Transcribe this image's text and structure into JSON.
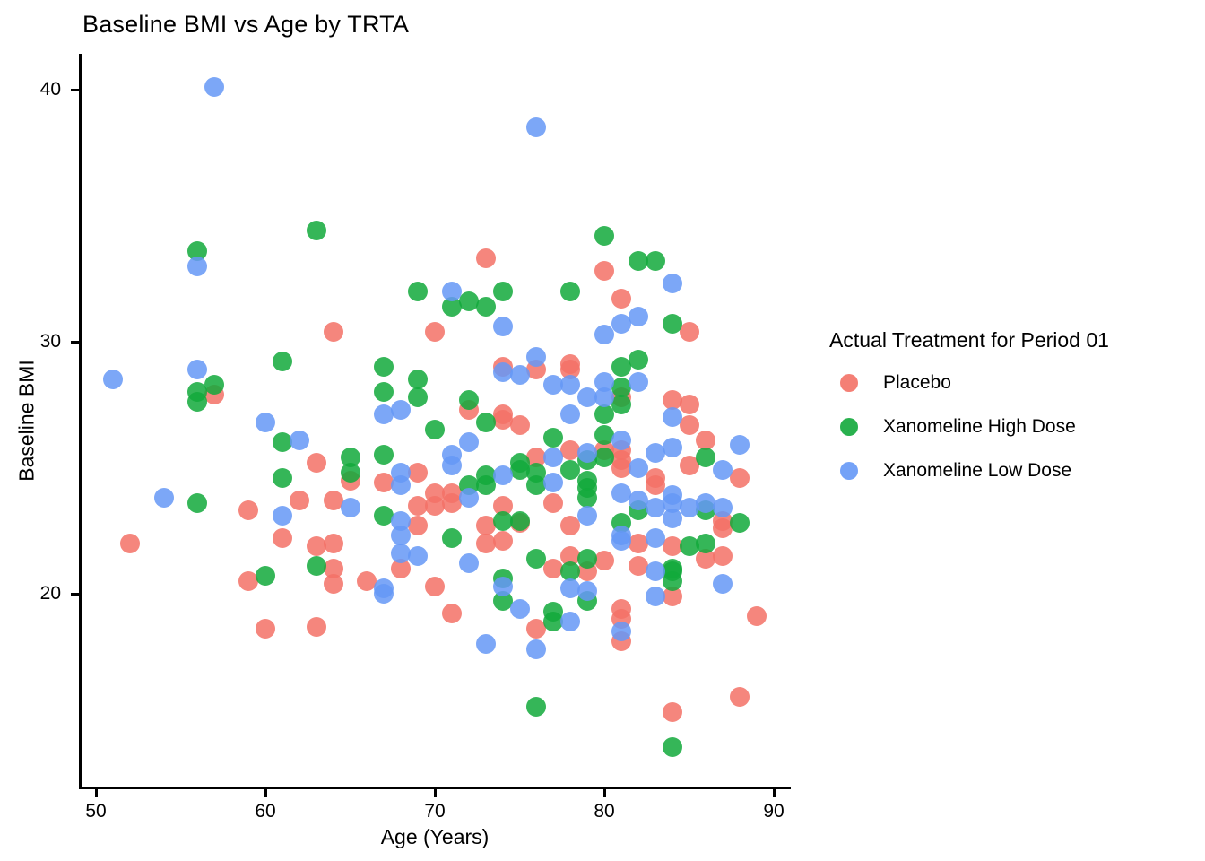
{
  "title": "Baseline BMI vs Age by TRTA",
  "chart_data": {
    "type": "scatter",
    "title": "Baseline BMI vs Age by TRTA",
    "xlabel": "Age (Years)",
    "ylabel": "Baseline BMI",
    "xlim": [
      49,
      91
    ],
    "ylim": [
      12.5,
      41.4
    ],
    "x_ticks": [
      50,
      60,
      70,
      80,
      90
    ],
    "y_ticks": [
      20,
      30,
      40
    ],
    "grid": false,
    "legend_title": "Actual Treatment for Period 01",
    "legend_position": "right",
    "series": [
      {
        "name": "Placebo",
        "color": "#F37166",
        "points": [
          [
            52,
            22.0
          ],
          [
            57,
            27.9
          ],
          [
            59,
            23.3
          ],
          [
            59,
            20.5
          ],
          [
            60,
            18.6
          ],
          [
            61,
            22.2
          ],
          [
            62,
            23.7
          ],
          [
            63,
            25.2
          ],
          [
            63,
            21.9
          ],
          [
            63,
            18.7
          ],
          [
            64,
            30.4
          ],
          [
            64,
            23.7
          ],
          [
            64,
            22.0
          ],
          [
            64,
            21.0
          ],
          [
            64,
            20.4
          ],
          [
            65,
            24.5
          ],
          [
            66,
            20.5
          ],
          [
            67,
            24.4
          ],
          [
            68,
            21.0
          ],
          [
            69,
            24.8
          ],
          [
            69,
            23.5
          ],
          [
            69,
            22.7
          ],
          [
            70,
            30.4
          ],
          [
            70,
            24.0
          ],
          [
            70,
            23.5
          ],
          [
            70,
            20.3
          ],
          [
            71,
            24.0
          ],
          [
            71,
            23.6
          ],
          [
            71,
            19.2
          ],
          [
            72,
            27.3
          ],
          [
            73,
            33.3
          ],
          [
            73,
            22.7
          ],
          [
            73,
            22.0
          ],
          [
            74,
            29.0
          ],
          [
            74,
            27.1
          ],
          [
            74,
            26.9
          ],
          [
            74,
            23.5
          ],
          [
            74,
            22.1
          ],
          [
            75,
            26.7
          ],
          [
            75,
            22.8
          ],
          [
            76,
            28.9
          ],
          [
            76,
            25.4
          ],
          [
            76,
            18.6
          ],
          [
            77,
            23.6
          ],
          [
            77,
            21.0
          ],
          [
            78,
            29.1
          ],
          [
            78,
            28.9
          ],
          [
            78,
            25.7
          ],
          [
            78,
            22.7
          ],
          [
            78,
            21.5
          ],
          [
            79,
            20.9
          ],
          [
            80,
            32.8
          ],
          [
            80,
            25.7
          ],
          [
            80,
            21.3
          ],
          [
            81,
            31.7
          ],
          [
            81,
            27.8
          ],
          [
            81,
            25.7
          ],
          [
            81,
            25.3
          ],
          [
            81,
            25.0
          ],
          [
            81,
            19.4
          ],
          [
            81,
            19.0
          ],
          [
            81,
            18.1
          ],
          [
            82,
            22.0
          ],
          [
            82,
            21.1
          ],
          [
            83,
            24.6
          ],
          [
            83,
            24.3
          ],
          [
            84,
            27.7
          ],
          [
            84,
            21.9
          ],
          [
            84,
            19.9
          ],
          [
            84,
            15.3
          ],
          [
            85,
            30.4
          ],
          [
            85,
            27.5
          ],
          [
            85,
            26.7
          ],
          [
            85,
            25.1
          ],
          [
            86,
            26.1
          ],
          [
            86,
            21.4
          ],
          [
            87,
            22.9
          ],
          [
            87,
            22.6
          ],
          [
            87,
            21.5
          ],
          [
            88,
            24.6
          ],
          [
            88,
            15.9
          ],
          [
            89,
            19.1
          ]
        ]
      },
      {
        "name": "Xanomeline High Dose",
        "color": "#12A93B",
        "points": [
          [
            56,
            33.6
          ],
          [
            56,
            28.0
          ],
          [
            56,
            27.6
          ],
          [
            56,
            23.6
          ],
          [
            57,
            28.3
          ],
          [
            60,
            20.7
          ],
          [
            61,
            29.2
          ],
          [
            61,
            26.0
          ],
          [
            61,
            24.6
          ],
          [
            63,
            34.4
          ],
          [
            63,
            21.1
          ],
          [
            65,
            25.4
          ],
          [
            65,
            24.8
          ],
          [
            67,
            29.0
          ],
          [
            67,
            28.0
          ],
          [
            67,
            25.5
          ],
          [
            67,
            23.1
          ],
          [
            69,
            32.0
          ],
          [
            69,
            28.5
          ],
          [
            69,
            27.8
          ],
          [
            70,
            26.5
          ],
          [
            71,
            31.4
          ],
          [
            71,
            22.2
          ],
          [
            72,
            31.6
          ],
          [
            72,
            27.7
          ],
          [
            72,
            24.3
          ],
          [
            73,
            31.4
          ],
          [
            73,
            26.8
          ],
          [
            73,
            24.7
          ],
          [
            73,
            24.3
          ],
          [
            74,
            32.0
          ],
          [
            74,
            22.9
          ],
          [
            74,
            20.6
          ],
          [
            74,
            19.7
          ],
          [
            75,
            25.2
          ],
          [
            75,
            24.9
          ],
          [
            75,
            22.9
          ],
          [
            76,
            24.8
          ],
          [
            76,
            24.3
          ],
          [
            76,
            21.4
          ],
          [
            76,
            15.5
          ],
          [
            77,
            26.2
          ],
          [
            77,
            19.3
          ],
          [
            77,
            18.9
          ],
          [
            78,
            32.0
          ],
          [
            78,
            24.9
          ],
          [
            78,
            20.9
          ],
          [
            79,
            25.3
          ],
          [
            79,
            24.5
          ],
          [
            79,
            24.2
          ],
          [
            79,
            23.8
          ],
          [
            79,
            21.4
          ],
          [
            79,
            19.7
          ],
          [
            80,
            34.2
          ],
          [
            80,
            27.1
          ],
          [
            80,
            26.3
          ],
          [
            80,
            25.4
          ],
          [
            81,
            29.0
          ],
          [
            81,
            28.2
          ],
          [
            81,
            27.5
          ],
          [
            81,
            22.8
          ],
          [
            82,
            33.2
          ],
          [
            82,
            29.3
          ],
          [
            82,
            23.3
          ],
          [
            83,
            33.2
          ],
          [
            84,
            30.7
          ],
          [
            84,
            21.0
          ],
          [
            84,
            20.9
          ],
          [
            84,
            20.5
          ],
          [
            84,
            13.9
          ],
          [
            85,
            21.9
          ],
          [
            86,
            25.4
          ],
          [
            86,
            23.3
          ],
          [
            86,
            22.0
          ],
          [
            88,
            22.8
          ]
        ]
      },
      {
        "name": "Xanomeline Low Dose",
        "color": "#6598F6",
        "points": [
          [
            51,
            28.5
          ],
          [
            54,
            23.8
          ],
          [
            57,
            40.1
          ],
          [
            56,
            33.0
          ],
          [
            56,
            28.9
          ],
          [
            60,
            26.8
          ],
          [
            61,
            23.1
          ],
          [
            62,
            26.1
          ],
          [
            65,
            23.4
          ],
          [
            67,
            27.1
          ],
          [
            67,
            20.2
          ],
          [
            67,
            20.0
          ],
          [
            68,
            27.3
          ],
          [
            68,
            24.8
          ],
          [
            68,
            24.3
          ],
          [
            68,
            22.9
          ],
          [
            68,
            22.3
          ],
          [
            68,
            21.6
          ],
          [
            69,
            21.5
          ],
          [
            71,
            32.0
          ],
          [
            71,
            25.5
          ],
          [
            71,
            25.1
          ],
          [
            72,
            26.0
          ],
          [
            72,
            23.8
          ],
          [
            72,
            21.2
          ],
          [
            73,
            18.0
          ],
          [
            74,
            30.6
          ],
          [
            74,
            28.8
          ],
          [
            74,
            24.7
          ],
          [
            74,
            20.3
          ],
          [
            75,
            28.7
          ],
          [
            75,
            19.4
          ],
          [
            76,
            38.5
          ],
          [
            76,
            29.4
          ],
          [
            76,
            17.8
          ],
          [
            77,
            28.3
          ],
          [
            77,
            25.4
          ],
          [
            77,
            24.4
          ],
          [
            78,
            28.3
          ],
          [
            78,
            27.1
          ],
          [
            78,
            20.2
          ],
          [
            78,
            18.9
          ],
          [
            79,
            27.8
          ],
          [
            79,
            25.6
          ],
          [
            79,
            23.1
          ],
          [
            79,
            20.1
          ],
          [
            80,
            30.3
          ],
          [
            80,
            28.4
          ],
          [
            80,
            27.8
          ],
          [
            81,
            30.7
          ],
          [
            81,
            26.1
          ],
          [
            81,
            24.0
          ],
          [
            81,
            22.3
          ],
          [
            81,
            22.1
          ],
          [
            81,
            18.5
          ],
          [
            82,
            31.0
          ],
          [
            82,
            28.4
          ],
          [
            82,
            25.0
          ],
          [
            82,
            23.7
          ],
          [
            83,
            25.6
          ],
          [
            83,
            23.4
          ],
          [
            83,
            22.2
          ],
          [
            83,
            20.9
          ],
          [
            83,
            19.9
          ],
          [
            84,
            32.3
          ],
          [
            84,
            27.0
          ],
          [
            84,
            25.8
          ],
          [
            84,
            23.9
          ],
          [
            84,
            23.6
          ],
          [
            84,
            23.0
          ],
          [
            85,
            23.4
          ],
          [
            86,
            23.6
          ],
          [
            87,
            24.9
          ],
          [
            87,
            23.4
          ],
          [
            87,
            20.4
          ],
          [
            88,
            25.9
          ]
        ]
      }
    ]
  }
}
